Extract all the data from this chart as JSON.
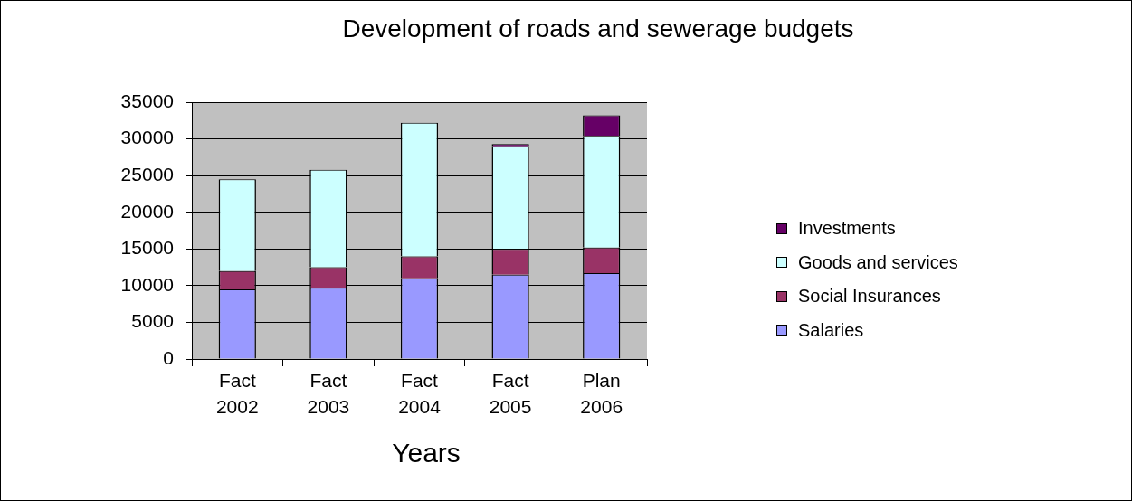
{
  "chart_data": {
    "type": "bar",
    "title": "Development of roads and sewerage budgets",
    "xlabel": "Years",
    "categories": [
      "Fact 2002",
      "Fact 2003",
      "Fact 2004",
      "Fact 2005",
      "Plan 2006"
    ],
    "stacked": true,
    "series": [
      {
        "name": "Salaries",
        "color": "#9999ff",
        "values": [
          9500,
          9700,
          11000,
          11500,
          11700
        ]
      },
      {
        "name": "Social Insurances",
        "color": "#993366",
        "values": [
          2500,
          2800,
          3000,
          3500,
          3500
        ]
      },
      {
        "name": "Goods and services",
        "color": "#ccffff",
        "values": [
          12500,
          13300,
          18200,
          14000,
          15200
        ]
      },
      {
        "name": "Investments",
        "color": "#660066",
        "values": [
          0,
          0,
          0,
          300,
          2800
        ]
      }
    ],
    "ylim": [
      0,
      35000
    ],
    "yticks": [
      0,
      5000,
      10000,
      15000,
      20000,
      25000,
      30000,
      35000
    ],
    "grid": "y",
    "legend": "right"
  }
}
